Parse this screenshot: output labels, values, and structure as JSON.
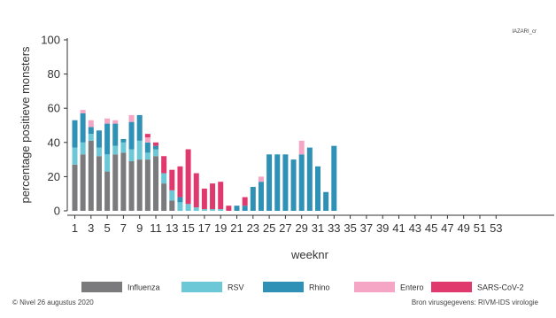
{
  "corner_label": "IAZARI_cr",
  "footer": {
    "left": "© Nivel 26 augustus 2020",
    "right": "Bron virusgegevens: RIVM-IDS virologie"
  },
  "colors": {
    "Influenza": "#7b7b7d",
    "RSV": "#6cc8d6",
    "Rhino": "#2f91b6",
    "Entero": "#f5a6c4",
    "SARS-CoV-2": "#e0396e",
    "axis": "#333333"
  },
  "chart_data": {
    "type": "bar",
    "stacked": true,
    "title": "",
    "xlabel": "weeknr",
    "ylabel": "percentage positieve monsters",
    "ylim": [
      0,
      100
    ],
    "yticks": [
      0,
      20,
      40,
      60,
      80,
      100
    ],
    "categories": [
      "1",
      "2",
      "3",
      "4",
      "5",
      "6",
      "7",
      "8",
      "9",
      "10",
      "11",
      "12",
      "13",
      "14",
      "15",
      "16",
      "17",
      "18",
      "19",
      "20",
      "21",
      "22",
      "23",
      "24",
      "25",
      "26",
      "27",
      "28",
      "29",
      "30",
      "31",
      "32",
      "33",
      "34",
      "35",
      "36",
      "37",
      "38",
      "39",
      "40",
      "41",
      "42",
      "43",
      "44",
      "45",
      "46",
      "47",
      "48",
      "49",
      "50",
      "51",
      "52",
      "53"
    ],
    "xtick_labels": [
      "1",
      "3",
      "5",
      "7",
      "9",
      "11",
      "13",
      "15",
      "17",
      "19",
      "21",
      "23",
      "25",
      "27",
      "29",
      "31",
      "33",
      "35",
      "37",
      "39",
      "41",
      "43",
      "45",
      "47",
      "49",
      "51",
      "53"
    ],
    "legend_position": "bottom",
    "series": [
      {
        "name": "Influenza",
        "values": [
          27,
          33,
          41,
          32,
          23,
          33,
          34,
          29,
          30,
          30,
          32,
          16,
          6,
          0,
          0,
          0,
          0,
          0,
          0,
          0,
          0,
          0,
          0,
          0,
          0,
          0,
          0,
          0,
          0,
          0,
          0,
          0,
          0,
          0,
          0,
          0,
          0,
          0,
          0,
          0,
          0,
          0,
          0,
          0,
          0,
          0,
          0,
          0,
          0,
          0,
          0,
          0,
          0
        ]
      },
      {
        "name": "RSV",
        "values": [
          10,
          7,
          4,
          5,
          10,
          5,
          6,
          7,
          11,
          4,
          4,
          6,
          6,
          5,
          4,
          2,
          1,
          1,
          1,
          0,
          0,
          0,
          0,
          0,
          0,
          0,
          0,
          0,
          0,
          0,
          0,
          0,
          0,
          0,
          0,
          0,
          0,
          0,
          0,
          0,
          0,
          0,
          0,
          0,
          0,
          0,
          0,
          0,
          0,
          0,
          0,
          0,
          0
        ]
      },
      {
        "name": "Rhino",
        "values": [
          16,
          17,
          4,
          10,
          18,
          13,
          2,
          16,
          15,
          6,
          2,
          0,
          0,
          3,
          0,
          0,
          0,
          0,
          0,
          0,
          3,
          3,
          14,
          17,
          33,
          33,
          33,
          30,
          33,
          37,
          26,
          11,
          38,
          0,
          0,
          0,
          0,
          0,
          0,
          0,
          0,
          0,
          0,
          0,
          0,
          0,
          0,
          0,
          0,
          0,
          0,
          0,
          0
        ]
      },
      {
        "name": "Entero",
        "values": [
          0,
          2,
          4,
          0,
          3,
          2,
          0,
          4,
          0,
          3,
          0,
          0,
          0,
          0,
          0,
          0,
          0,
          0,
          0,
          0,
          0,
          0,
          0,
          3,
          0,
          0,
          0,
          0,
          8,
          0,
          0,
          0,
          0,
          0,
          0,
          0,
          0,
          0,
          0,
          0,
          0,
          0,
          0,
          0,
          0,
          0,
          0,
          0,
          0,
          0,
          0,
          0,
          0
        ]
      },
      {
        "name": "SARS-CoV-2",
        "values": [
          0,
          0,
          0,
          0,
          0,
          0,
          0,
          0,
          0,
          2,
          2,
          10,
          12,
          18,
          32,
          20,
          12,
          15,
          16,
          3,
          0,
          5,
          0,
          0,
          0,
          0,
          0,
          0,
          0,
          0,
          0,
          0,
          0,
          0,
          0,
          0,
          0,
          0,
          0,
          0,
          0,
          0,
          0,
          0,
          0,
          0,
          0,
          0,
          0,
          0,
          0,
          0,
          0
        ]
      }
    ]
  }
}
